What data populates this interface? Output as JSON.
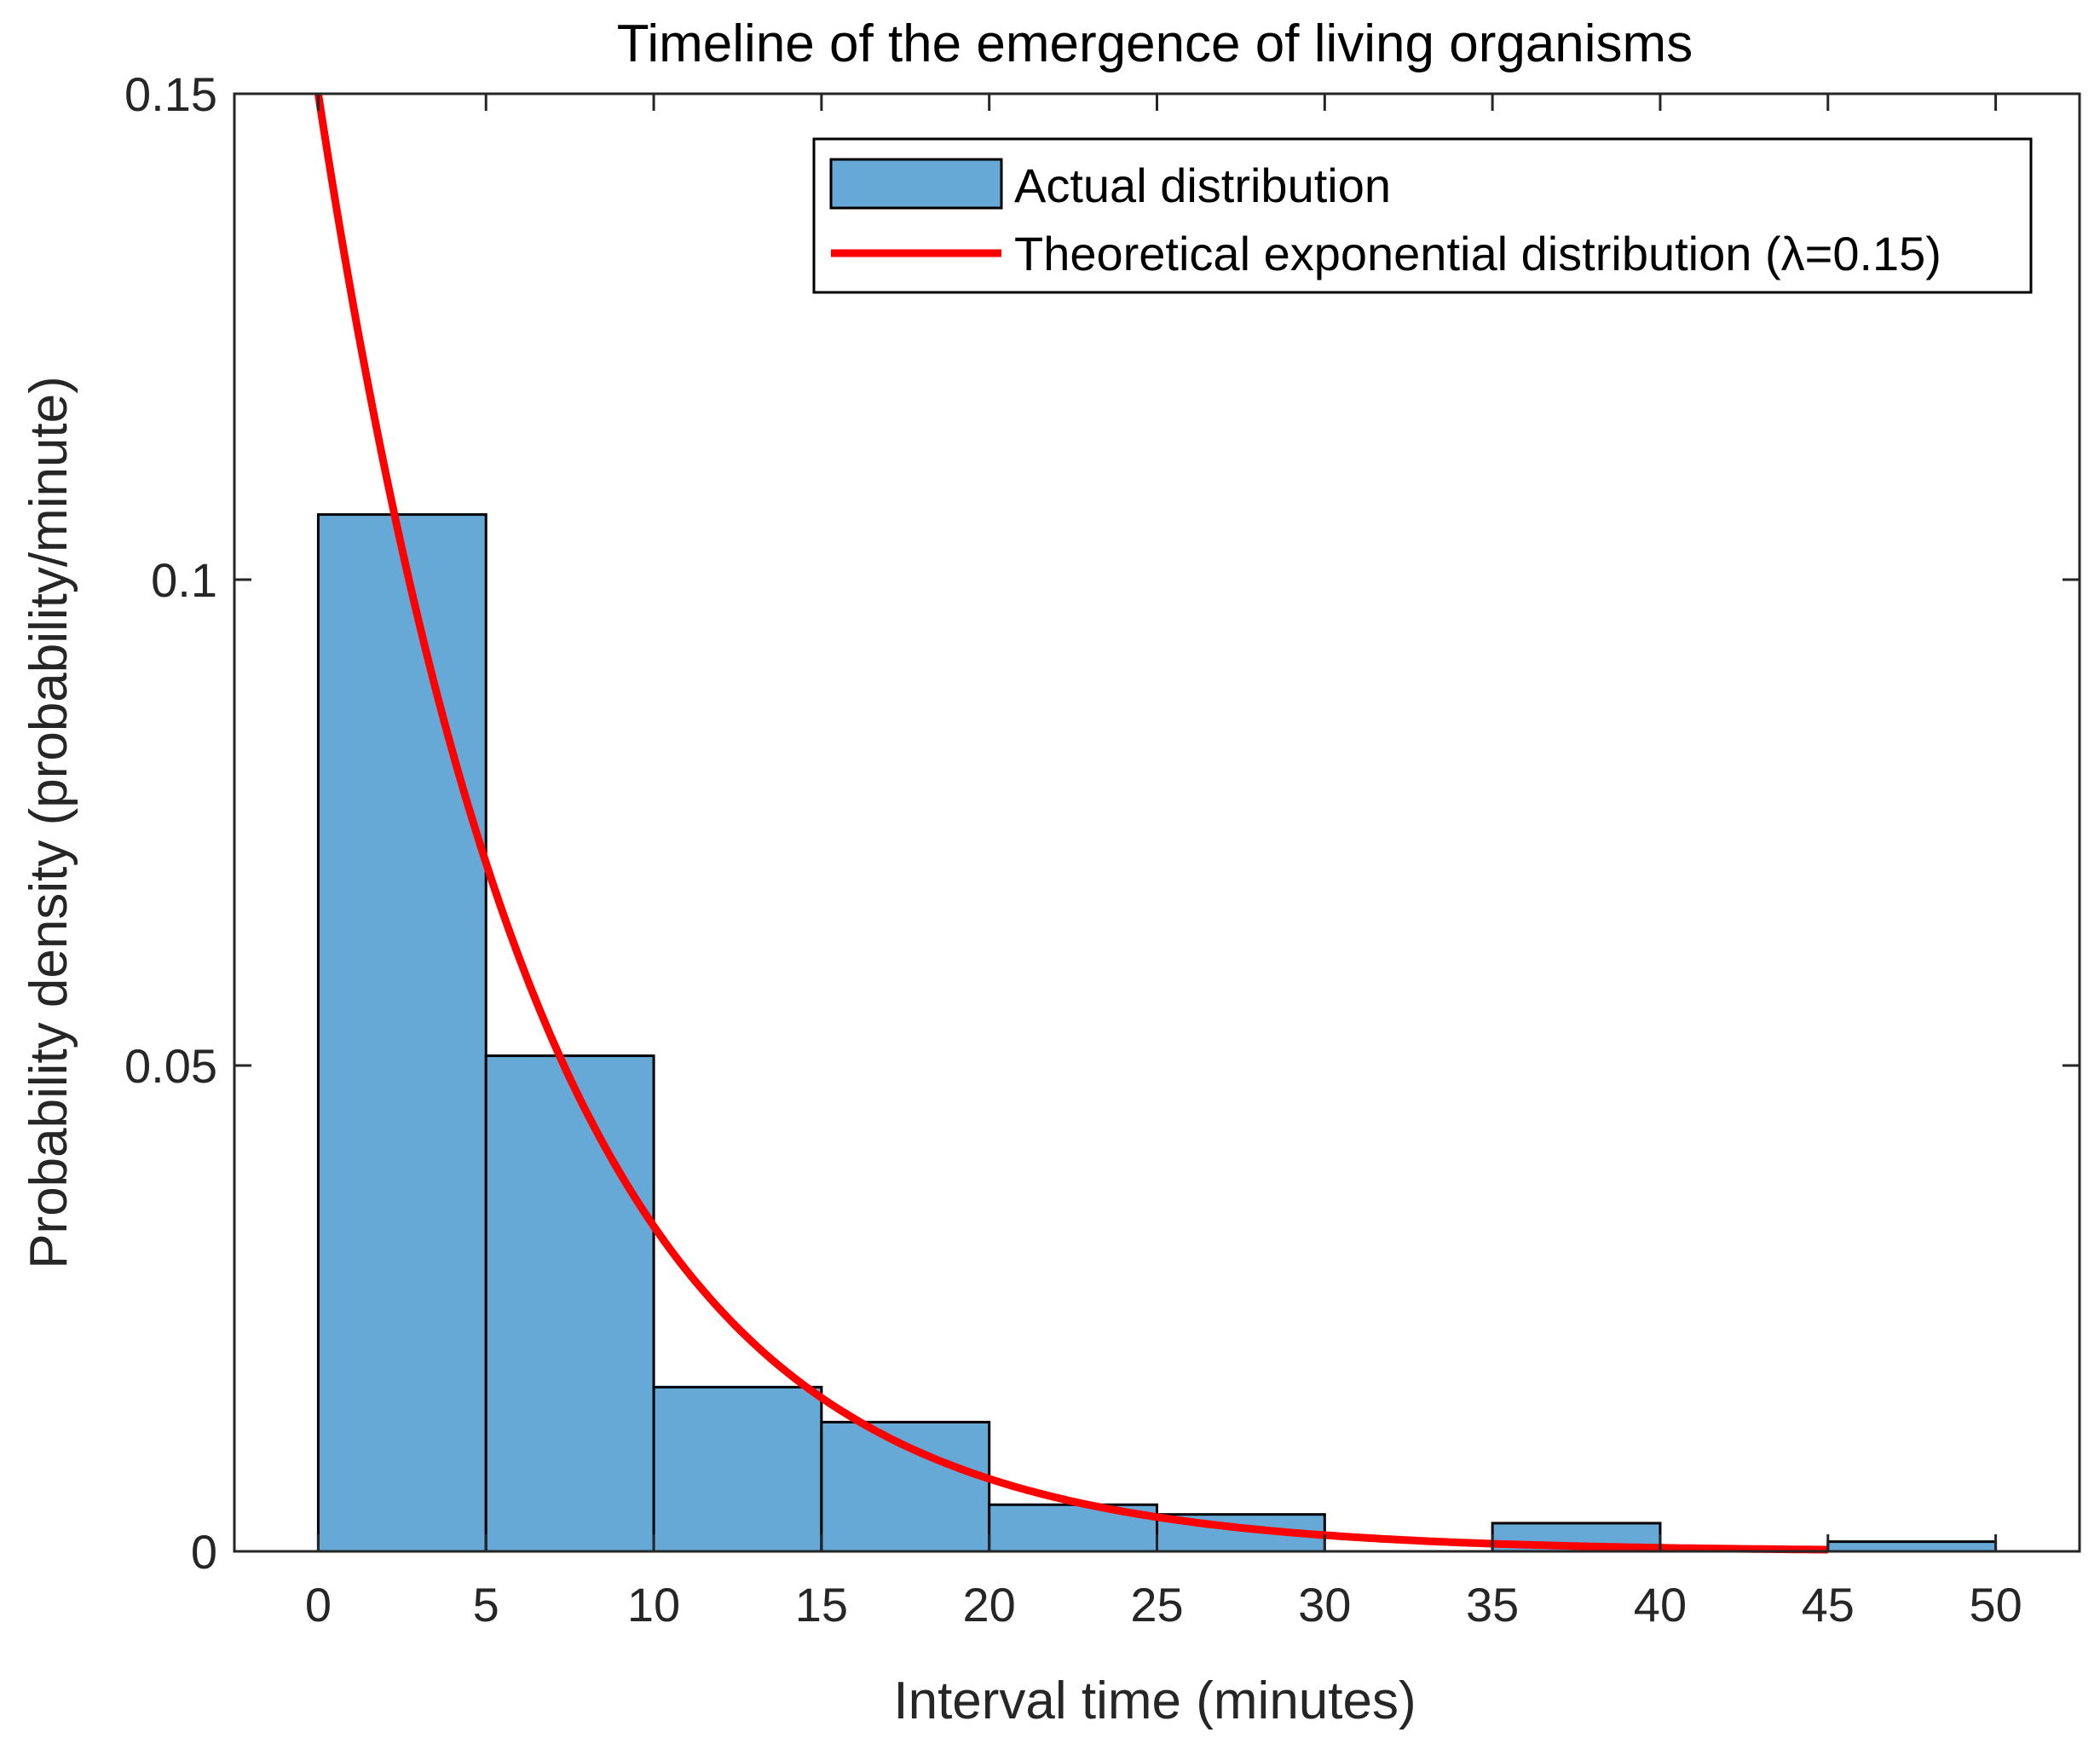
{
  "chart_data": {
    "type": "bar",
    "title": "Timeline of the emergence of living organisms",
    "xlabel": "Interval time (minutes)",
    "ylabel": "Probability density (probability/minute)",
    "xlim": [
      -2.5,
      52.5
    ],
    "ylim": [
      0,
      0.15
    ],
    "xticks": [
      0,
      5,
      10,
      15,
      20,
      25,
      30,
      35,
      40,
      45,
      50
    ],
    "xtick_labels": [
      "0",
      "5",
      "10",
      "15",
      "20",
      "25",
      "30",
      "35",
      "40",
      "45",
      "50"
    ],
    "yticks": [
      0,
      0.05,
      0.1,
      0.15
    ],
    "ytick_labels": [
      "0",
      "0.05",
      "0.1",
      "0.15"
    ],
    "histogram": {
      "name": "Actual  distribution",
      "bin_edges": [
        0,
        5,
        10,
        15,
        20,
        25,
        30,
        35,
        40,
        45,
        50
      ],
      "values": [
        0.1067,
        0.051,
        0.0169,
        0.0133,
        0.0048,
        0.0038,
        0.0,
        0.0029,
        0.0,
        0.001
      ],
      "color": "#66A9D6",
      "edge_color": "#000000"
    },
    "curve": {
      "name": "Theoretical exponential distribution (λ=0.15)",
      "lambda": 0.15,
      "x_range": [
        0,
        45
      ],
      "color": "#FF0000"
    },
    "legend": {
      "position": "top-right",
      "entries": [
        "Actual  distribution",
        "Theoretical exponential distribution (λ=0.15)"
      ]
    }
  }
}
